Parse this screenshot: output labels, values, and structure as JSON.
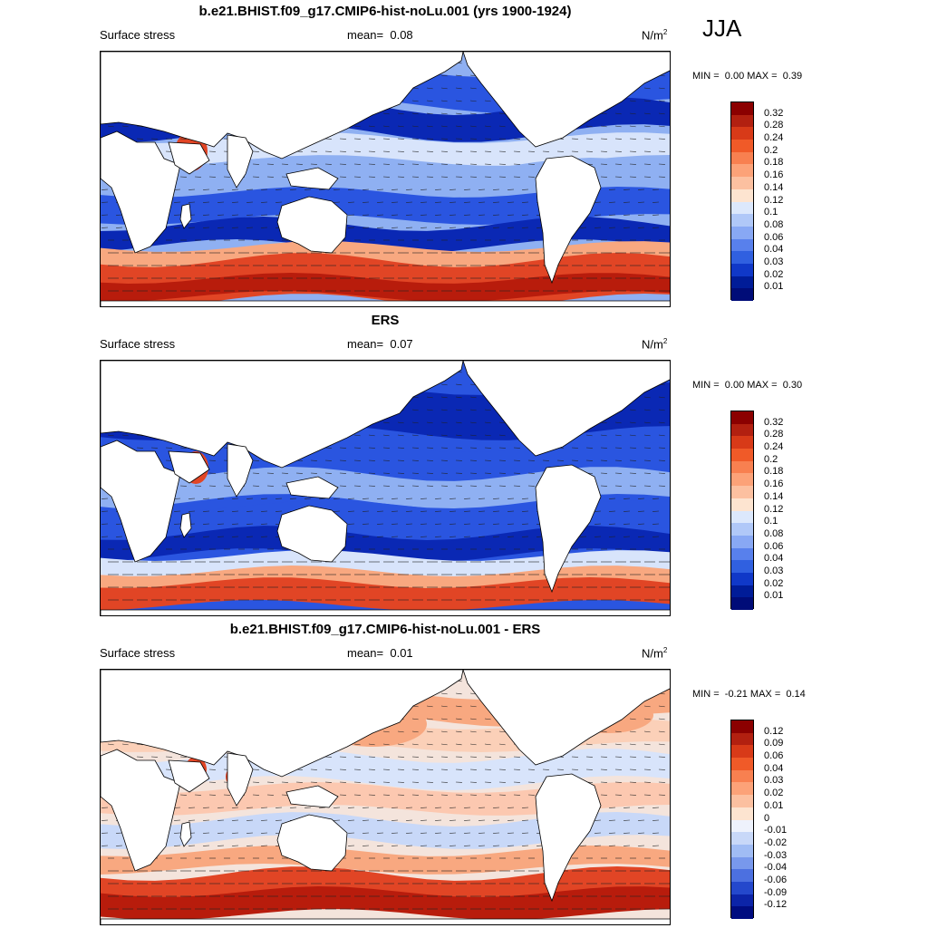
{
  "season": "JJA",
  "units": "N/m",
  "units_sup": "2",
  "land_color": "#ffffff",
  "panels": [
    {
      "title": "b.e21.BHIST.f09_g17.CMIP6-hist-noLu.001 (yrs 1900-1924)",
      "variable": "Surface stress",
      "mean_label": "mean=",
      "mean_value": "0.08",
      "min_label": "MIN =",
      "min_value": "0.00",
      "max_label": "MAX =",
      "max_value": "0.39",
      "colorbar": {
        "labels": [
          "0.32",
          "0.28",
          "0.24",
          "0.2",
          "0.18",
          "0.16",
          "0.14",
          "0.12",
          "0.1",
          "0.08",
          "0.06",
          "0.04",
          "0.03",
          "0.02",
          "0.01"
        ],
        "colors": [
          "#8b0000",
          "#b22010",
          "#d83a18",
          "#f05a28",
          "#f88050",
          "#fca278",
          "#fcc0a0",
          "#fde4d0",
          "#dce8fc",
          "#b0c8f8",
          "#88a8f4",
          "#5880ec",
          "#3060e0",
          "#1038c8",
          "#001c98",
          "#000c78"
        ]
      },
      "stats_note": ""
    },
    {
      "title": "ERS",
      "variable": "Surface stress",
      "mean_label": "mean=",
      "mean_value": "0.07",
      "min_label": "MIN =",
      "min_value": "0.00",
      "max_label": "MAX =",
      "max_value": "0.30",
      "colorbar": {
        "labels": [
          "0.32",
          "0.28",
          "0.24",
          "0.2",
          "0.18",
          "0.16",
          "0.14",
          "0.12",
          "0.1",
          "0.08",
          "0.06",
          "0.04",
          "0.03",
          "0.02",
          "0.01"
        ],
        "colors": [
          "#8b0000",
          "#b22010",
          "#d83a18",
          "#f05a28",
          "#f88050",
          "#fca278",
          "#fcc0a0",
          "#fde4d0",
          "#dce8fc",
          "#b0c8f8",
          "#88a8f4",
          "#5880ec",
          "#3060e0",
          "#1038c8",
          "#001c98",
          "#000c78"
        ]
      },
      "stats_note": ""
    },
    {
      "title": "b.e21.BHIST.f09_g17.CMIP6-hist-noLu.001 - ERS",
      "variable": "Surface stress",
      "mean_label": "mean=",
      "mean_value": "0.01",
      "min_label": "MIN =",
      "min_value": "-0.21",
      "max_label": "MAX =",
      "max_value": "0.14",
      "colorbar": {
        "labels": [
          "0.12",
          "0.09",
          "0.06",
          "0.04",
          "0.03",
          "0.02",
          "0.01",
          "0",
          "-0.01",
          "-0.02",
          "-0.03",
          "-0.04",
          "-0.06",
          "-0.09",
          "-0.12"
        ],
        "colors": [
          "#8b0000",
          "#b22010",
          "#d83a18",
          "#f05a28",
          "#f88050",
          "#fca278",
          "#fcc0a0",
          "#fde4d0",
          "#eef2fc",
          "#c8d8f8",
          "#a0bcf4",
          "#7898ec",
          "#4c70e0",
          "#2448cc",
          "#0c24a8",
          "#000c80"
        ]
      },
      "stats_note": ""
    }
  ]
}
